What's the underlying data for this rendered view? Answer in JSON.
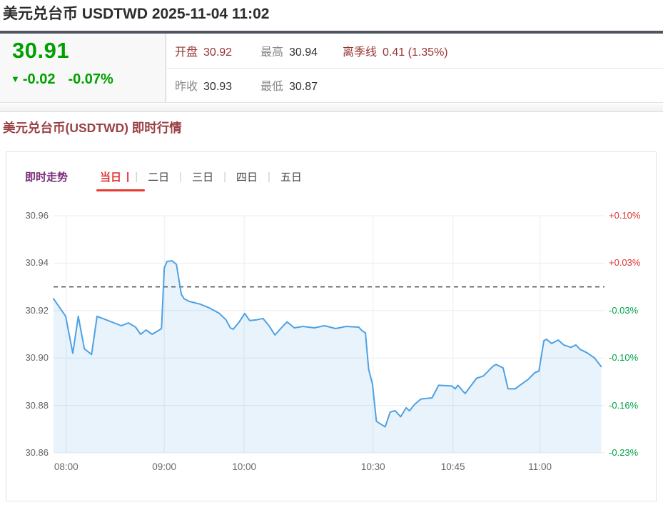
{
  "header": {
    "title": "美元兑台币 USDTWD 2025-11-04 11:02"
  },
  "quote": {
    "price": "30.91",
    "change_icon": "▼",
    "change": "-0.02",
    "change_pct": "-0.07%",
    "up_color": "#e03232",
    "down_color": "#00a000",
    "stats": {
      "open_label": "开盘",
      "open": "30.92",
      "high_label": "最高",
      "high": "30.94",
      "quarter_label": "离季线",
      "quarter": "0.41 (1.35%)",
      "prev_label": "昨收",
      "prev": "30.93",
      "low_label": "最低",
      "low": "30.87"
    }
  },
  "section": {
    "title": "美元兑台币(USDTWD) 即时行情"
  },
  "tabs": {
    "lead": "即时走势",
    "active": "当日",
    "active_bar": "|",
    "separator": "|",
    "others": [
      "二日",
      "三日",
      "四日",
      "五日"
    ]
  },
  "chart_data": {
    "type": "area",
    "title": "USDTWD 即时走势 当日",
    "xlabel": "",
    "ylabel": "",
    "ylim": [
      30.86,
      30.96
    ],
    "prev_close": 30.93,
    "grid": true,
    "legend": "none",
    "line_color": "#4fa1e3",
    "fill_color": "rgba(79,161,227,0.13)",
    "grid_color": "#e8edf3",
    "dash_color": "#4a4a4a",
    "y_ticks": [
      {
        "value": 30.96,
        "left_label": "30.96",
        "right_label": "+0.10%",
        "right_color": "#e03232"
      },
      {
        "value": 30.94,
        "left_label": "30.94",
        "right_label": "+0.03%",
        "right_color": "#e03232"
      },
      {
        "value": 30.92,
        "left_label": "30.92",
        "right_label": "-0.03%",
        "right_color": "#00a546"
      },
      {
        "value": 30.9,
        "left_label": "30.90",
        "right_label": "-0.10%",
        "right_color": "#00a546"
      },
      {
        "value": 30.88,
        "left_label": "30.88",
        "right_label": "-0.16%",
        "right_color": "#00a546"
      },
      {
        "value": 30.86,
        "left_label": "30.86",
        "right_label": "-0.23%",
        "right_color": "#00a546"
      }
    ],
    "x_ticks": [
      {
        "label": "08:00",
        "pct": 2.3
      },
      {
        "label": "09:00",
        "pct": 20.1
      },
      {
        "label": "10:00",
        "pct": 34.6
      },
      {
        "label": "10:30",
        "pct": 58.0
      },
      {
        "label": "10:45",
        "pct": 72.5
      },
      {
        "label": "11:00",
        "pct": 88.3
      }
    ],
    "series": [
      {
        "name": "USDTWD",
        "points": [
          [
            0,
            30.925
          ],
          [
            2.2,
            30.9176
          ],
          [
            3.5,
            30.902
          ],
          [
            4.5,
            30.9176
          ],
          [
            5.6,
            30.9039
          ],
          [
            6.9,
            30.9015
          ],
          [
            7.9,
            30.9176
          ],
          [
            12.3,
            30.9136
          ],
          [
            13.6,
            30.9148
          ],
          [
            14.9,
            30.913
          ],
          [
            15.8,
            30.91
          ],
          [
            16.8,
            30.9118
          ],
          [
            17.9,
            30.91
          ],
          [
            19.2,
            30.9118
          ],
          [
            19.6,
            30.9124
          ],
          [
            20.1,
            30.938
          ],
          [
            20.6,
            30.9407
          ],
          [
            21.5,
            30.941
          ],
          [
            22.3,
            30.9395
          ],
          [
            23.2,
            30.9268
          ],
          [
            23.7,
            30.925
          ],
          [
            24.6,
            30.9239
          ],
          [
            26.6,
            30.9227
          ],
          [
            28.2,
            30.9212
          ],
          [
            30.1,
            30.9188
          ],
          [
            31.3,
            30.9161
          ],
          [
            32.1,
            30.9127
          ],
          [
            32.6,
            30.9121
          ],
          [
            33.7,
            30.9152
          ],
          [
            34.7,
            30.9188
          ],
          [
            35.6,
            30.9158
          ],
          [
            36.9,
            30.9161
          ],
          [
            38,
            30.9167
          ],
          [
            39.1,
            30.9136
          ],
          [
            40.2,
            30.9097
          ],
          [
            41.7,
            30.9136
          ],
          [
            42.4,
            30.9152
          ],
          [
            43.7,
            30.9127
          ],
          [
            45.3,
            30.9133
          ],
          [
            47.3,
            30.9127
          ],
          [
            49.2,
            30.9136
          ],
          [
            51.2,
            30.9124
          ],
          [
            53.1,
            30.9133
          ],
          [
            55.4,
            30.913
          ],
          [
            56,
            30.9115
          ],
          [
            56.6,
            30.9106
          ],
          [
            57.2,
            30.8952
          ],
          [
            57.9,
            30.8889
          ],
          [
            58.6,
            30.8733
          ],
          [
            59.2,
            30.8724
          ],
          [
            60.2,
            30.871
          ],
          [
            61.1,
            30.8772
          ],
          [
            62,
            30.8778
          ],
          [
            63,
            30.8752
          ],
          [
            64,
            30.879
          ],
          [
            64.6,
            30.8777
          ],
          [
            65.6,
            30.8806
          ],
          [
            66.7,
            30.8827
          ],
          [
            68.7,
            30.8832
          ],
          [
            69.9,
            30.8885
          ],
          [
            72.3,
            30.8882
          ],
          [
            72.9,
            30.887
          ],
          [
            73.4,
            30.8885
          ],
          [
            74.7,
            30.885
          ],
          [
            76.8,
            30.8915
          ],
          [
            78,
            30.8924
          ],
          [
            79.7,
            30.8964
          ],
          [
            80.3,
            30.8973
          ],
          [
            81.6,
            30.8958
          ],
          [
            82.5,
            30.887
          ],
          [
            83.8,
            30.887
          ],
          [
            84.8,
            30.8888
          ],
          [
            86.1,
            30.8909
          ],
          [
            87.4,
            30.8939
          ],
          [
            88.1,
            30.8945
          ],
          [
            89,
            30.9073
          ],
          [
            89.5,
            30.9079
          ],
          [
            90.4,
            30.9061
          ],
          [
            91.6,
            30.9076
          ],
          [
            92.6,
            30.9055
          ],
          [
            93.9,
            30.9045
          ],
          [
            94.8,
            30.9055
          ],
          [
            95.6,
            30.9036
          ],
          [
            96.9,
            30.9021
          ],
          [
            98.2,
            30.9
          ],
          [
            99.4,
            30.8964
          ]
        ]
      }
    ]
  }
}
